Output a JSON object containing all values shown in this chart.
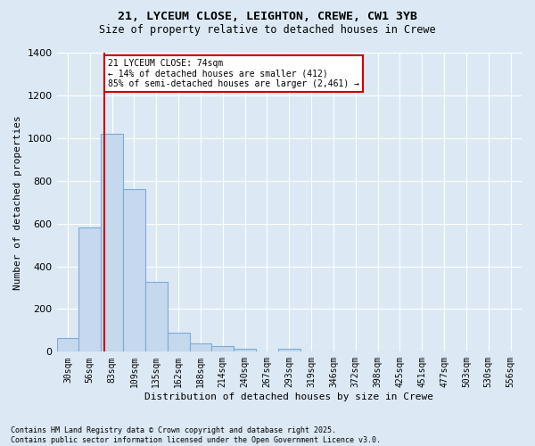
{
  "title1": "21, LYCEUM CLOSE, LEIGHTON, CREWE, CW1 3YB",
  "title2": "Size of property relative to detached houses in Crewe",
  "xlabel": "Distribution of detached houses by size in Crewe",
  "ylabel": "Number of detached properties",
  "categories": [
    "30sqm",
    "56sqm",
    "83sqm",
    "109sqm",
    "135sqm",
    "162sqm",
    "188sqm",
    "214sqm",
    "240sqm",
    "267sqm",
    "293sqm",
    "319sqm",
    "346sqm",
    "372sqm",
    "398sqm",
    "425sqm",
    "451sqm",
    "477sqm",
    "503sqm",
    "530sqm",
    "556sqm"
  ],
  "values": [
    65,
    580,
    1020,
    760,
    325,
    90,
    40,
    25,
    15,
    0,
    15,
    0,
    0,
    0,
    0,
    0,
    0,
    0,
    0,
    0,
    0
  ],
  "bar_color": "#c5d8ee",
  "bar_edge_color": "#7aadd4",
  "background_color": "#dce9f5",
  "grid_color": "#ffffff",
  "annotation_line_color": "#cc0000",
  "annotation_box_color": "#ffffff",
  "annotation_box_edge_color": "#cc0000",
  "annotation_box_text_line1": "21 LYCEUM CLOSE: 74sqm",
  "annotation_box_text_line2": "← 14% of detached houses are smaller (412)",
  "annotation_box_text_line3": "85% of semi-detached houses are larger (2,461) →",
  "footnote": "Contains HM Land Registry data © Crown copyright and database right 2025.\nContains public sector information licensed under the Open Government Licence v3.0.",
  "ylim": [
    0,
    1400
  ],
  "yticks": [
    0,
    200,
    400,
    600,
    800,
    1000,
    1200,
    1400
  ],
  "red_line_index": 1.667
}
